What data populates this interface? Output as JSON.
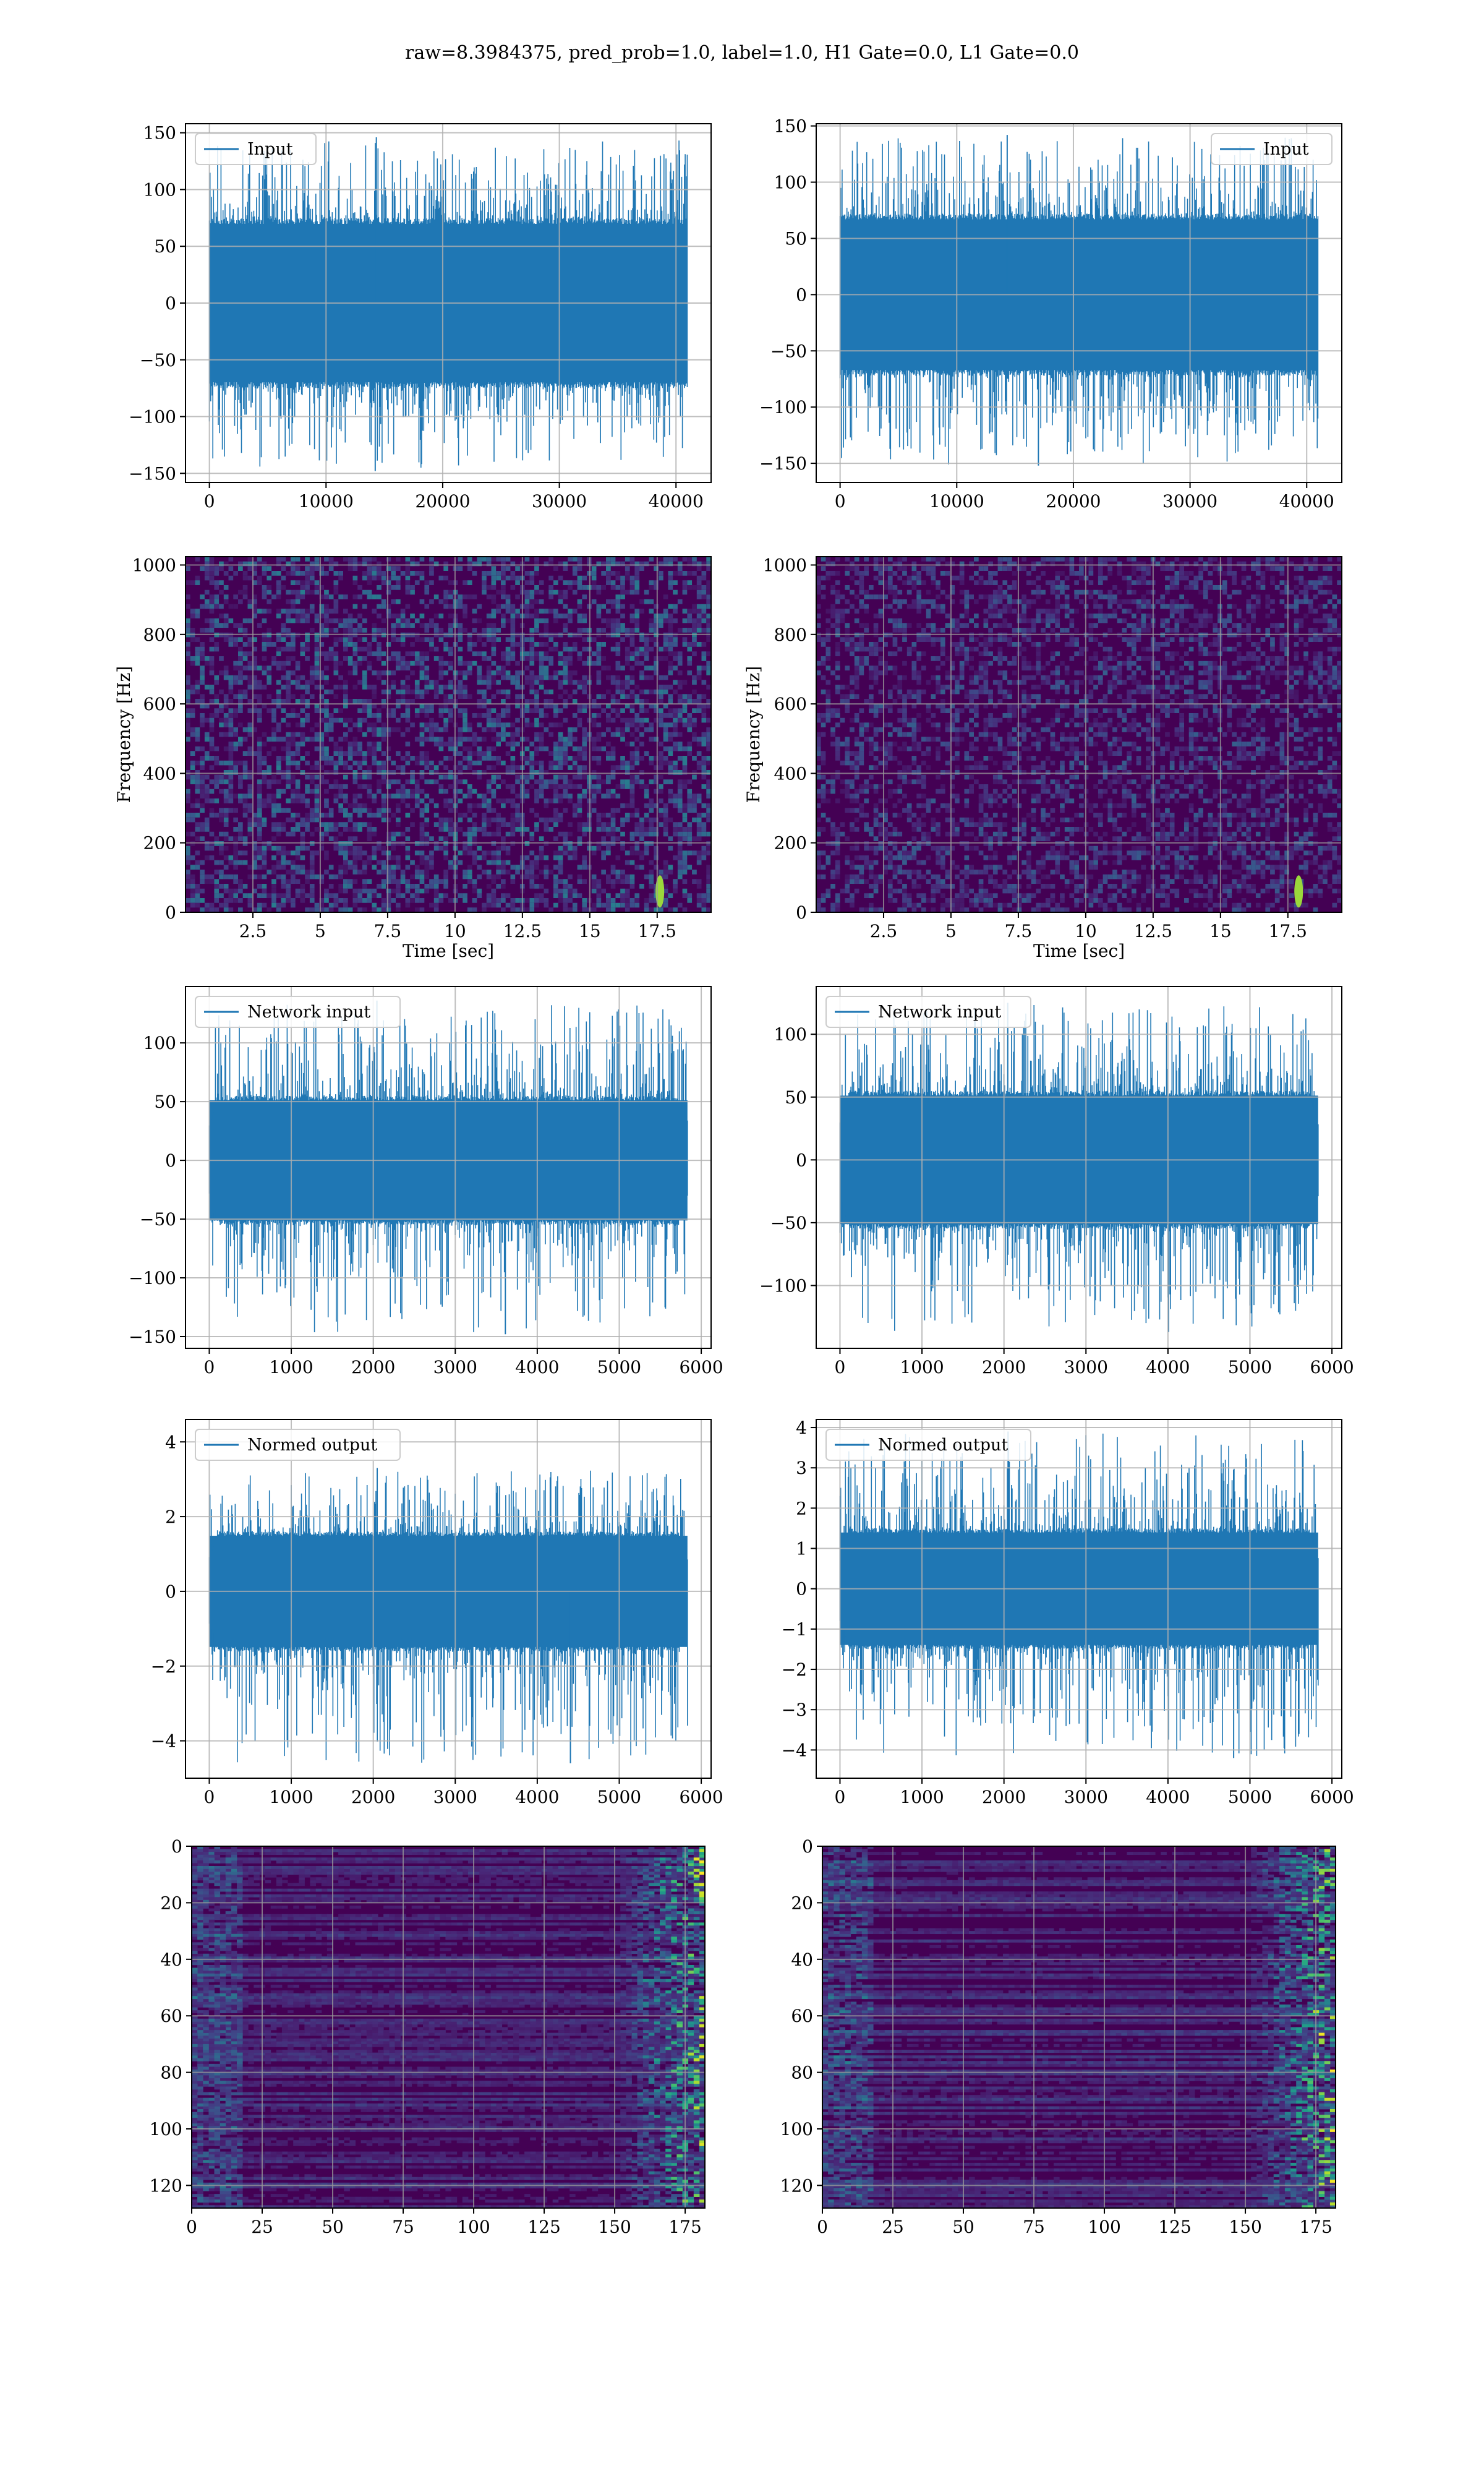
{
  "figure": {
    "title": "raw=8.3984375, pred_prob=1.0, label=1.0, H1 Gate=0.0, L1 Gate=0.0",
    "colors": {
      "line": "#1f77b4",
      "grid": "#b0b0b0",
      "heat_bg": "#440154"
    }
  },
  "chart_data": [
    {
      "id": "input-h1",
      "type": "line",
      "title": "",
      "xlabel": "",
      "ylabel": "",
      "legend": "Input",
      "legend_loc": "upper left",
      "xlim": [
        -2048,
        43008
      ],
      "ylim": [
        -158,
        158
      ],
      "xticks": [
        0,
        10000,
        20000,
        30000,
        40000
      ],
      "yticks": [
        -150,
        -100,
        -50,
        0,
        50,
        100,
        150
      ],
      "series": [
        {
          "name": "Input",
          "n_samples": 40960,
          "band": [
            -75,
            75
          ],
          "extremes": [
            -148,
            146
          ]
        }
      ]
    },
    {
      "id": "input-l1",
      "type": "line",
      "title": "",
      "xlabel": "",
      "ylabel": "",
      "legend": "Input",
      "legend_loc": "upper right",
      "xlim": [
        -2048,
        43008
      ],
      "ylim": [
        -167,
        152
      ],
      "xticks": [
        0,
        10000,
        20000,
        30000,
        40000
      ],
      "yticks": [
        -150,
        -100,
        -50,
        0,
        50,
        100,
        150
      ],
      "series": [
        {
          "name": "Input",
          "n_samples": 40960,
          "band": [
            -72,
            72
          ],
          "extremes": [
            -152,
            142
          ]
        }
      ]
    },
    {
      "id": "spectrogram-h1",
      "type": "heatmap",
      "title": "",
      "xlabel": "Time [sec]",
      "ylabel": "Frequency [Hz]",
      "xlim": [
        0,
        19.5
      ],
      "ylim": [
        0,
        1024
      ],
      "xticks": [
        2.5,
        5.0,
        7.5,
        10.0,
        12.5,
        15.0,
        17.5
      ],
      "yticks": [
        0,
        200,
        400,
        600,
        800,
        1000
      ],
      "colormap": "viridis",
      "chirp_time": 17.6
    },
    {
      "id": "spectrogram-l1",
      "type": "heatmap",
      "title": "",
      "xlabel": "Time [sec]",
      "ylabel": "Frequency [Hz]",
      "xlim": [
        0,
        19.5
      ],
      "ylim": [
        0,
        1024
      ],
      "xticks": [
        2.5,
        5.0,
        7.5,
        10.0,
        12.5,
        15.0,
        17.5
      ],
      "yticks": [
        0,
        200,
        400,
        600,
        800,
        1000
      ],
      "colormap": "viridis",
      "chirp_time": 17.9
    },
    {
      "id": "network-input-h1",
      "type": "line",
      "title": "",
      "xlabel": "",
      "ylabel": "",
      "legend": "Network input",
      "legend_loc": "upper left",
      "xlim": [
        -290,
        6120
      ],
      "ylim": [
        -160,
        148
      ],
      "xticks": [
        0,
        1000,
        2000,
        3000,
        4000,
        5000,
        6000
      ],
      "yticks": [
        -150,
        -100,
        -50,
        0,
        50,
        100
      ],
      "series": [
        {
          "name": "Network input",
          "n_samples": 5832,
          "band": [
            -55,
            55
          ],
          "extremes": [
            -148,
            136
          ]
        }
      ]
    },
    {
      "id": "network-input-l1",
      "type": "line",
      "title": "",
      "xlabel": "",
      "ylabel": "",
      "legend": "Network input",
      "legend_loc": "upper left",
      "xlim": [
        -290,
        6120
      ],
      "ylim": [
        -150,
        138
      ],
      "xticks": [
        0,
        1000,
        2000,
        3000,
        4000,
        5000,
        6000
      ],
      "yticks": [
        -100,
        -50,
        0,
        50,
        100
      ],
      "series": [
        {
          "name": "Network input",
          "n_samples": 5832,
          "band": [
            -55,
            55
          ],
          "extremes": [
            -137,
            125
          ]
        }
      ]
    },
    {
      "id": "normed-output-h1",
      "type": "line",
      "title": "",
      "xlabel": "",
      "ylabel": "",
      "legend": "Normed output",
      "legend_loc": "upper left",
      "xlim": [
        -290,
        6120
      ],
      "ylim": [
        -5.0,
        4.6
      ],
      "xticks": [
        0,
        1000,
        2000,
        3000,
        4000,
        5000,
        6000
      ],
      "yticks": [
        -4,
        -2,
        0,
        2,
        4
      ],
      "series": [
        {
          "name": "Normed output",
          "n_samples": 5832,
          "band": [
            -1.6,
            1.6
          ],
          "extremes": [
            -4.6,
            3.3
          ]
        }
      ]
    },
    {
      "id": "normed-output-l1",
      "type": "line",
      "title": "",
      "xlabel": "",
      "ylabel": "",
      "legend": "Normed output",
      "legend_loc": "upper left",
      "xlim": [
        -290,
        6120
      ],
      "ylim": [
        -4.7,
        4.2
      ],
      "xticks": [
        0,
        1000,
        2000,
        3000,
        4000,
        5000,
        6000
      ],
      "yticks": [
        -4,
        -3,
        -2,
        -1,
        0,
        1,
        2,
        3,
        4
      ],
      "series": [
        {
          "name": "Normed output",
          "n_samples": 5832,
          "band": [
            -1.5,
            1.5
          ],
          "extremes": [
            -4.2,
            3.9
          ]
        }
      ]
    },
    {
      "id": "feature-map-h1",
      "type": "heatmap",
      "title": "",
      "xlabel": "",
      "ylabel": "",
      "xlim": [
        0,
        182
      ],
      "ylim": [
        128,
        0
      ],
      "xticks": [
        0,
        25,
        50,
        75,
        100,
        125,
        150,
        175
      ],
      "yticks": [
        0,
        20,
        40,
        60,
        80,
        100,
        120
      ],
      "colormap": "viridis",
      "rows": 128,
      "cols": 182
    },
    {
      "id": "feature-map-l1",
      "type": "heatmap",
      "title": "",
      "xlabel": "",
      "ylabel": "",
      "xlim": [
        0,
        182
      ],
      "ylim": [
        128,
        0
      ],
      "xticks": [
        0,
        25,
        50,
        75,
        100,
        125,
        150,
        175
      ],
      "yticks": [
        0,
        20,
        40,
        60,
        80,
        100,
        120
      ],
      "colormap": "viridis",
      "rows": 128,
      "cols": 182
    }
  ]
}
